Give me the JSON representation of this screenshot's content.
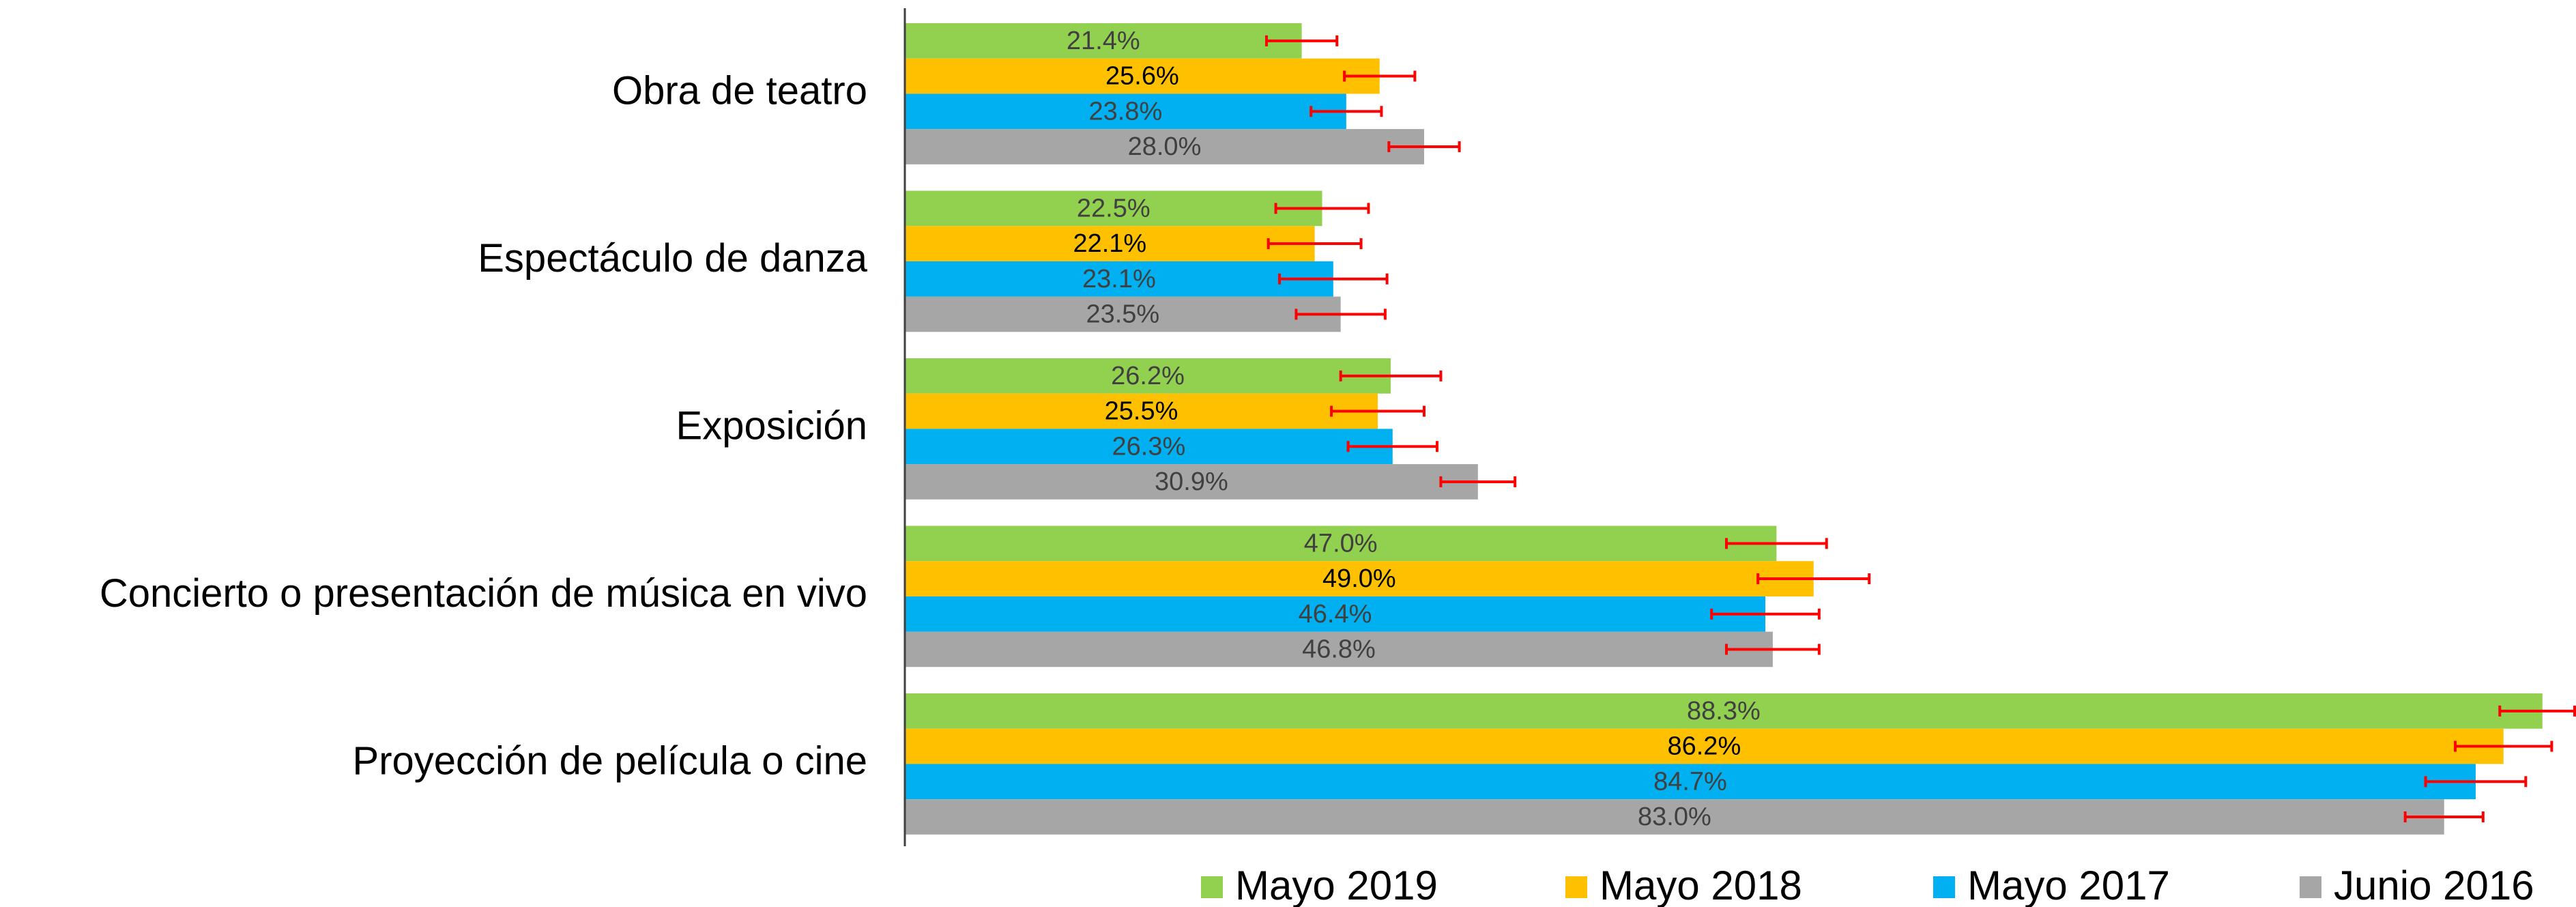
{
  "chart_data": {
    "type": "bar",
    "orientation": "horizontal",
    "categories": [
      "Obra de teatro",
      "Espectáculo de danza",
      "Exposición",
      "Concierto o presentación de música en vivo",
      "Proyección de película o cine"
    ],
    "series": [
      {
        "name": "Mayo 2019",
        "color": "#92d050",
        "label_color": "#404040",
        "values": [
          21.4,
          22.5,
          26.2,
          47.0,
          88.3
        ],
        "value_labels": [
          "21.4%",
          "22.5%",
          "26.2%",
          "47.0%",
          "88.3%"
        ],
        "errors": [
          1.9,
          2.5,
          2.7,
          2.7,
          2.3
        ]
      },
      {
        "name": "Mayo 2018",
        "color": "#ffc000",
        "label_color": "#000000",
        "values": [
          25.6,
          22.1,
          25.5,
          49.0,
          86.2
        ],
        "value_labels": [
          "25.6%",
          "22.1%",
          "25.5%",
          "49.0%",
          "86.2%"
        ],
        "errors": [
          1.9,
          2.5,
          2.5,
          3.0,
          2.6
        ]
      },
      {
        "name": "Mayo 2017",
        "color": "#00b0f0",
        "label_color": "#404040",
        "values": [
          23.8,
          23.1,
          26.3,
          46.4,
          84.7
        ],
        "value_labels": [
          "23.8%",
          "23.1%",
          "26.3%",
          "46.4%",
          "84.7%"
        ],
        "errors": [
          1.9,
          2.9,
          2.4,
          2.9,
          2.7
        ]
      },
      {
        "name": "Junio 2016",
        "color": "#a6a6a6",
        "label_color": "#404040",
        "values": [
          28.0,
          23.5,
          30.9,
          46.8,
          83.0
        ],
        "value_labels": [
          "28.0%",
          "23.5%",
          "30.9%",
          "46.8%",
          "83.0%"
        ],
        "errors": [
          1.9,
          2.4,
          2.0,
          2.5,
          2.1
        ]
      }
    ],
    "error_color": "#ff0000",
    "xlim": [
      0,
      90
    ],
    "legend": "bottom"
  }
}
